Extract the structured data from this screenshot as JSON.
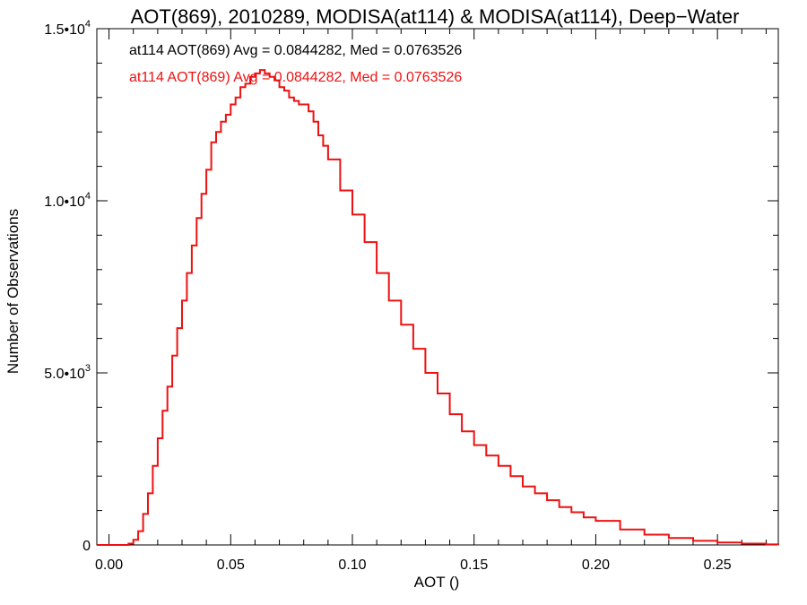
{
  "chart_data": {
    "type": "histogram",
    "title": "AOT(869), 2010289, MODISA(at114) & MODISA(at114), Deep−Water",
    "xlabel": "AOT ()",
    "ylabel": "Number of Observations",
    "xlim": [
      -0.005,
      0.275
    ],
    "ylim": [
      0,
      15000
    ],
    "x_ticks": [
      "0.00",
      "0.05",
      "0.10",
      "0.15",
      "0.20",
      "0.25"
    ],
    "x_tick_values": [
      0.0,
      0.05,
      0.1,
      0.15,
      0.2,
      0.25
    ],
    "y_ticks": [
      {
        "value": 0,
        "mantissa": "0",
        "exp": ""
      },
      {
        "value": 5000,
        "mantissa": "5.0•10",
        "exp": "3"
      },
      {
        "value": 10000,
        "mantissa": "1.0•10",
        "exp": "4"
      },
      {
        "value": 15000,
        "mantissa": "1.5•10",
        "exp": "4"
      }
    ],
    "legend": [
      {
        "text": "at114 AOT(869) Avg = 0.0844282, Med = 0.0763526",
        "color": "#000000"
      },
      {
        "text": "at114 AOT(869) Avg = 0.0844282, Med = 0.0763526",
        "color": "#ee1111"
      }
    ],
    "series": [
      {
        "color": "#ee1111",
        "x": [
          -0.005,
          0.0,
          0.005,
          0.008,
          0.01,
          0.012,
          0.014,
          0.016,
          0.018,
          0.02,
          0.022,
          0.024,
          0.026,
          0.028,
          0.03,
          0.032,
          0.034,
          0.036,
          0.038,
          0.04,
          0.042,
          0.044,
          0.046,
          0.048,
          0.05,
          0.052,
          0.054,
          0.056,
          0.058,
          0.06,
          0.062,
          0.064,
          0.066,
          0.068,
          0.07,
          0.072,
          0.074,
          0.076,
          0.078,
          0.08,
          0.082,
          0.084,
          0.086,
          0.088,
          0.09,
          0.095,
          0.1,
          0.105,
          0.11,
          0.115,
          0.12,
          0.125,
          0.13,
          0.135,
          0.14,
          0.145,
          0.15,
          0.155,
          0.16,
          0.165,
          0.17,
          0.175,
          0.18,
          0.185,
          0.19,
          0.195,
          0.2,
          0.21,
          0.22,
          0.23,
          0.24,
          0.25,
          0.26,
          0.27,
          0.275
        ],
        "y": [
          0,
          0,
          0,
          40,
          150,
          400,
          900,
          1500,
          2300,
          3100,
          3900,
          4600,
          5500,
          6300,
          7100,
          7900,
          8700,
          9500,
          10200,
          10900,
          11700,
          12000,
          12300,
          12500,
          12800,
          13000,
          13300,
          13400,
          13600,
          13700,
          13800,
          13700,
          13600,
          13500,
          13300,
          13200,
          13000,
          12900,
          12800,
          12800,
          12600,
          12300,
          11900,
          11600,
          11200,
          10300,
          9600,
          8800,
          7900,
          7100,
          6400,
          5700,
          5000,
          4400,
          3800,
          3300,
          2900,
          2600,
          2300,
          2000,
          1700,
          1500,
          1300,
          1100,
          950,
          800,
          700,
          450,
          300,
          200,
          120,
          70,
          40,
          15,
          5
        ]
      }
    ]
  }
}
